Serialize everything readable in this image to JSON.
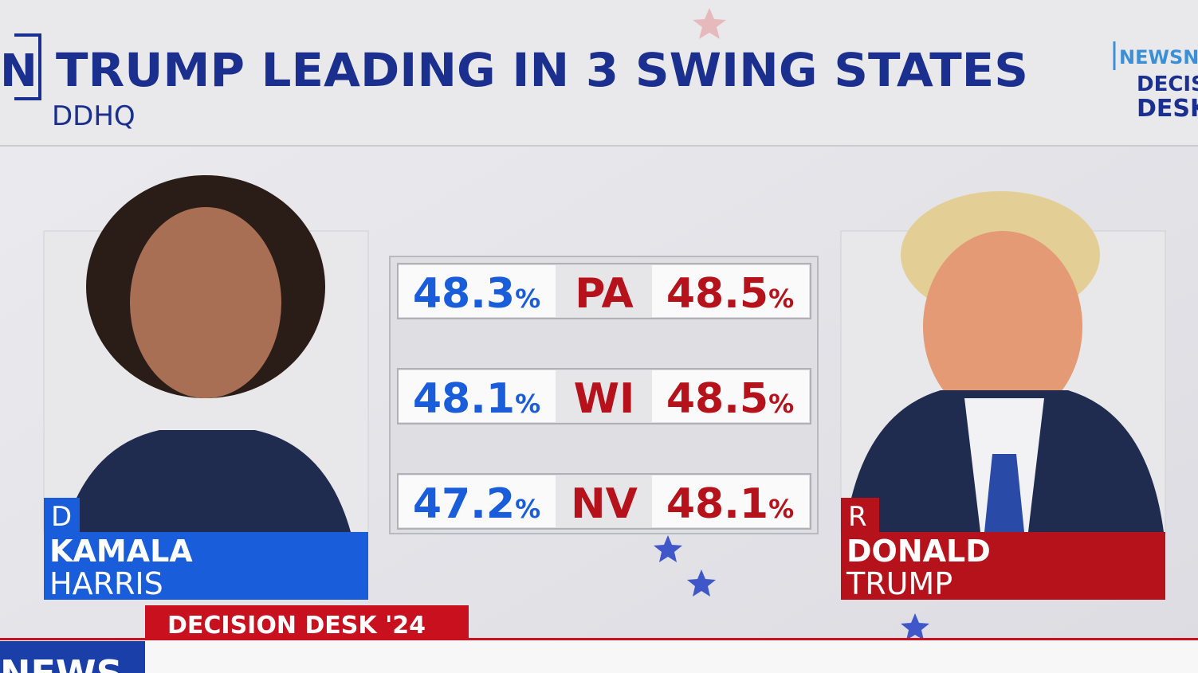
{
  "header": {
    "logo_letter": "N",
    "title": "TRUMP LEADING IN 3 SWING STATES",
    "source": "DDHQ",
    "corner_logo": [
      "NEWSN",
      "DECIS",
      "DESK"
    ]
  },
  "candidates": [
    {
      "party": "D",
      "first_name": "KAMALA",
      "last_name": "HARRIS"
    },
    {
      "party": "R",
      "first_name": "DONALD",
      "last_name": "TRUMP"
    }
  ],
  "unit": "%",
  "table": {
    "rows": [
      {
        "dem": 48.3,
        "state": "PA",
        "rep": 48.5
      },
      {
        "dem": 48.1,
        "state": "WI",
        "rep": 48.5
      },
      {
        "dem": 47.2,
        "state": "NV",
        "rep": 48.1
      }
    ]
  },
  "ticker": {
    "label": "DECISION DESK '24",
    "logo": "NEWS"
  }
}
